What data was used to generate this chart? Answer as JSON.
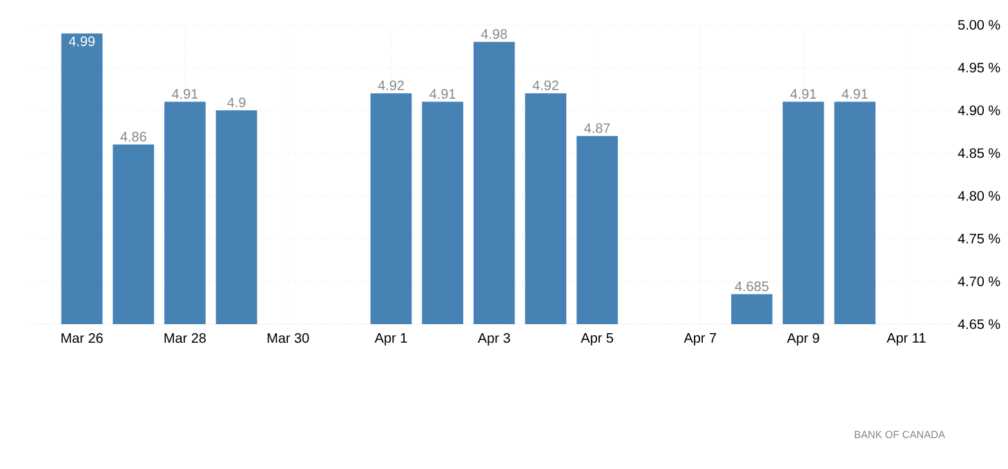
{
  "chart_data": {
    "type": "bar",
    "categories": [
      "Mar 26",
      null,
      "Mar 28",
      null,
      "Mar 30",
      null,
      "Apr 1",
      null,
      "Apr 3",
      null,
      "Apr 5",
      null,
      "Apr 7",
      null,
      "Apr 9",
      null,
      "Apr 11"
    ],
    "values": [
      4.99,
      4.86,
      4.91,
      4.9,
      null,
      null,
      4.92,
      4.91,
      4.98,
      4.92,
      4.87,
      null,
      null,
      4.685,
      4.91,
      4.91,
      null
    ],
    "color": "#4682b4",
    "ylim": [
      4.65,
      5.0
    ],
    "yticks": [
      {
        "value": 4.65,
        "label": "4.65 %"
      },
      {
        "value": 4.7,
        "label": "4.70 %"
      },
      {
        "value": 4.75,
        "label": "4.75 %"
      },
      {
        "value": 4.8,
        "label": "4.80 %"
      },
      {
        "value": 4.85,
        "label": "4.85 %"
      },
      {
        "value": 4.9,
        "label": "4.90 %"
      },
      {
        "value": 4.95,
        "label": "4.95 %"
      },
      {
        "value": 5.0,
        "label": "5.00 %"
      }
    ],
    "grid": true,
    "data_labels": true,
    "annotations": [
      "BANK OF CANADA"
    ]
  }
}
